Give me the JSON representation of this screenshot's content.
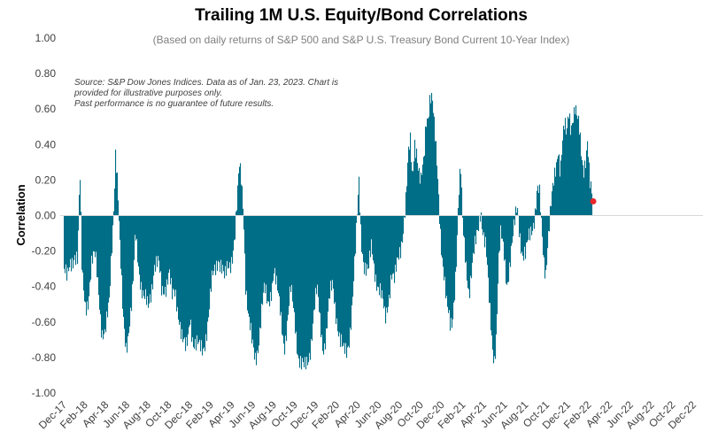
{
  "chart_data": {
    "type": "bar",
    "title": "Trailing 1M U.S. Equity/Bond Correlations",
    "subtitle": "(Based on daily returns of S&P 500 and S&P U.S. Treasury Bond Current 10-Year Index)",
    "ylabel": "Correlation",
    "xlabel": "",
    "ylim": [
      -1.0,
      1.0
    ],
    "yticks": [
      "1.00",
      "0.80",
      "0.60",
      "0.40",
      "0.20",
      "0.00",
      "-0.20",
      "-0.40",
      "-0.60",
      "-0.80",
      "-1.00"
    ],
    "xticks": [
      "Dec-17",
      "Feb-18",
      "Apr-18",
      "Jun-18",
      "Aug-18",
      "Oct-18",
      "Dec-18",
      "Feb-19",
      "Apr-19",
      "Jun-19",
      "Aug-19",
      "Oct-19",
      "Dec-19",
      "Feb-20",
      "Apr-20",
      "Jun-20",
      "Aug-20",
      "Oct-20",
      "Dec-20",
      "Feb-21",
      "Apr-21",
      "Jun-21",
      "Aug-21",
      "Oct-21",
      "Dec-21",
      "Feb-22",
      "Apr-22",
      "Jun-22",
      "Aug-22",
      "Oct-22",
      "Dec-22"
    ],
    "source_note": [
      "Source: S&P Dow Jones Indices.  Data as of Jan. 23, 2023.  Chart is",
      "provided for illustrative purposes only.",
      "Past performance is no guarantee of future results."
    ],
    "bar_color": "#006e87",
    "marker_color": "#e8272b",
    "grid": false,
    "legend": "none",
    "series_points": [
      [
        0,
        -0.3
      ],
      [
        0.3,
        -0.4
      ],
      [
        0.6,
        -0.28
      ],
      [
        1.0,
        -0.18
      ],
      [
        1.3,
        -0.25
      ],
      [
        1.5,
        0.22
      ],
      [
        1.7,
        -0.35
      ],
      [
        2.0,
        -0.48
      ],
      [
        2.3,
        -0.45
      ],
      [
        2.6,
        -0.3
      ],
      [
        3.0,
        -0.25
      ],
      [
        3.3,
        -0.4
      ],
      [
        3.6,
        -0.64
      ],
      [
        3.9,
        -0.7
      ],
      [
        4.1,
        -0.62
      ],
      [
        4.3,
        -0.5
      ],
      [
        4.5,
        -0.2
      ],
      [
        4.7,
        0.05
      ],
      [
        4.8,
        0.2
      ],
      [
        4.9,
        0.38
      ],
      [
        5.1,
        0.15
      ],
      [
        5.3,
        -0.2
      ],
      [
        5.6,
        -0.55
      ],
      [
        5.9,
        -0.7
      ],
      [
        6.1,
        -0.65
      ],
      [
        6.4,
        -0.55
      ],
      [
        6.6,
        -0.4
      ],
      [
        6.8,
        -0.1
      ],
      [
        7.0,
        -0.2
      ],
      [
        7.3,
        -0.35
      ],
      [
        7.6,
        -0.48
      ],
      [
        8.0,
        -0.55
      ],
      [
        8.3,
        -0.4
      ],
      [
        8.6,
        -0.25
      ],
      [
        9.0,
        -0.3
      ],
      [
        9.3,
        -0.45
      ],
      [
        9.6,
        -0.38
      ],
      [
        10.0,
        -0.3
      ],
      [
        10.3,
        -0.5
      ],
      [
        10.6,
        -0.45
      ],
      [
        11.0,
        -0.55
      ],
      [
        11.3,
        -0.7
      ],
      [
        11.6,
        -0.8
      ],
      [
        11.8,
        -0.72
      ],
      [
        12.0,
        -0.55
      ],
      [
        12.3,
        -0.68
      ],
      [
        12.6,
        -0.74
      ],
      [
        12.9,
        -0.78
      ],
      [
        13.2,
        -0.75
      ],
      [
        13.5,
        -0.65
      ],
      [
        13.8,
        -0.55
      ],
      [
        14.1,
        -0.4
      ],
      [
        14.4,
        -0.3
      ],
      [
        14.7,
        -0.2
      ],
      [
        15.0,
        -0.28
      ],
      [
        15.3,
        -0.4
      ],
      [
        15.6,
        -0.3
      ],
      [
        16.0,
        -0.2
      ],
      [
        16.3,
        -0.1
      ],
      [
        16.5,
        0.05
      ],
      [
        16.7,
        0.25
      ],
      [
        16.9,
        0.2
      ],
      [
        17.1,
        0.05
      ],
      [
        17.3,
        -0.35
      ],
      [
        17.6,
        -0.6
      ],
      [
        17.9,
        -0.75
      ],
      [
        18.2,
        -0.8
      ],
      [
        18.5,
        -0.7
      ],
      [
        18.8,
        -0.55
      ],
      [
        19.1,
        -0.45
      ],
      [
        19.4,
        -0.5
      ],
      [
        19.7,
        -0.4
      ],
      [
        20.0,
        -0.3
      ],
      [
        20.3,
        -0.45
      ],
      [
        20.6,
        -0.55
      ],
      [
        21.0,
        -0.7
      ],
      [
        21.3,
        -0.6
      ],
      [
        21.6,
        -0.45
      ],
      [
        22.0,
        -0.58
      ],
      [
        22.3,
        -0.75
      ],
      [
        22.6,
        -0.85
      ],
      [
        22.9,
        -0.9
      ],
      [
        23.2,
        -0.82
      ],
      [
        23.5,
        -0.7
      ],
      [
        23.8,
        -0.55
      ],
      [
        24.1,
        -0.45
      ],
      [
        24.4,
        -0.6
      ],
      [
        24.7,
        -0.72
      ],
      [
        25.0,
        -0.65
      ],
      [
        25.3,
        -0.5
      ],
      [
        25.6,
        -0.4
      ],
      [
        26.0,
        -0.55
      ],
      [
        26.3,
        -0.7
      ],
      [
        26.6,
        -0.8
      ],
      [
        26.9,
        -0.78
      ],
      [
        27.2,
        -0.65
      ],
      [
        27.5,
        -0.45
      ],
      [
        27.8,
        -0.2
      ],
      [
        28.0,
        0.05
      ],
      [
        28.1,
        0.18
      ],
      [
        28.3,
        -0.1
      ],
      [
        28.6,
        -0.25
      ],
      [
        29.0,
        -0.35
      ],
      [
        29.3,
        -0.2
      ],
      [
        29.6,
        -0.28
      ],
      [
        30.0,
        -0.4
      ],
      [
        30.3,
        -0.5
      ],
      [
        30.6,
        -0.6
      ],
      [
        30.9,
        -0.45
      ],
      [
        31.2,
        -0.3
      ],
      [
        31.5,
        -0.4
      ],
      [
        31.8,
        -0.28
      ],
      [
        32.1,
        -0.15
      ],
      [
        32.3,
        -0.05
      ],
      [
        32.6,
        0.1
      ],
      [
        32.8,
        0.3
      ],
      [
        33.0,
        0.38
      ],
      [
        33.2,
        0.2
      ],
      [
        33.4,
        0.45
      ],
      [
        33.6,
        0.4
      ],
      [
        33.8,
        0.25
      ],
      [
        34.0,
        0.15
      ],
      [
        34.3,
        0.28
      ],
      [
        34.5,
        0.55
      ],
      [
        34.7,
        0.6
      ],
      [
        34.9,
        0.72
      ],
      [
        35.1,
        0.65
      ],
      [
        35.3,
        0.45
      ],
      [
        35.6,
        0.2
      ],
      [
        35.9,
        -0.1
      ],
      [
        36.2,
        -0.3
      ],
      [
        36.5,
        -0.55
      ],
      [
        36.8,
        -0.65
      ],
      [
        37.0,
        -0.6
      ],
      [
        37.2,
        -0.4
      ],
      [
        37.4,
        -0.2
      ],
      [
        37.6,
        0.1
      ],
      [
        37.8,
        0.23
      ],
      [
        38.0,
        -0.1
      ],
      [
        38.3,
        -0.25
      ],
      [
        38.6,
        -0.4
      ],
      [
        38.9,
        -0.3
      ],
      [
        39.2,
        -0.2
      ],
      [
        39.5,
        -0.05
      ],
      [
        39.7,
        0.08
      ],
      [
        39.9,
        -0.05
      ],
      [
        40.2,
        -0.2
      ],
      [
        40.5,
        -0.5
      ],
      [
        40.8,
        -0.7
      ],
      [
        41.0,
        -0.78
      ],
      [
        41.2,
        -0.65
      ],
      [
        41.4,
        -0.3
      ],
      [
        41.6,
        -0.15
      ],
      [
        41.9,
        -0.2
      ],
      [
        42.2,
        -0.35
      ],
      [
        42.5,
        -0.25
      ],
      [
        42.8,
        -0.15
      ],
      [
        43.0,
        -0.05
      ],
      [
        43.2,
        0.05
      ],
      [
        43.4,
        -0.05
      ],
      [
        43.7,
        -0.2
      ],
      [
        44.0,
        -0.25
      ],
      [
        44.3,
        -0.15
      ],
      [
        44.6,
        -0.05
      ],
      [
        44.9,
        0.05
      ],
      [
        45.1,
        0.15
      ],
      [
        45.3,
        0.1
      ],
      [
        45.5,
        -0.1
      ],
      [
        45.7,
        -0.25
      ],
      [
        45.9,
        -0.3
      ],
      [
        46.1,
        -0.1
      ],
      [
        46.4,
        0.05
      ],
      [
        46.7,
        0.15
      ],
      [
        46.9,
        0.25
      ],
      [
        47.1,
        0.4
      ],
      [
        47.3,
        0.3
      ],
      [
        47.5,
        0.45
      ],
      [
        47.7,
        0.5
      ],
      [
        47.9,
        0.4
      ],
      [
        48.1,
        0.55
      ],
      [
        48.3,
        0.5
      ],
      [
        48.5,
        0.6
      ],
      [
        48.7,
        0.65
      ],
      [
        48.9,
        0.55
      ],
      [
        49.1,
        0.45
      ],
      [
        49.3,
        0.3
      ],
      [
        49.5,
        0.25
      ],
      [
        49.7,
        0.35
      ],
      [
        49.9,
        0.48
      ],
      [
        50.1,
        0.2
      ],
      [
        50.3,
        0.08
      ]
    ]
  }
}
